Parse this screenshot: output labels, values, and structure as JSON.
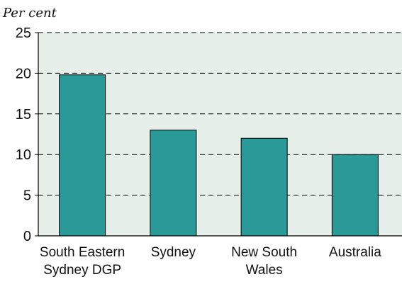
{
  "chart_data": {
    "type": "bar",
    "ylabel": "Per cent",
    "xlabel": "",
    "categories": [
      [
        "South Eastern",
        "Sydney DGP"
      ],
      [
        "Sydney"
      ],
      [
        "New South",
        "Wales"
      ],
      [
        "Australia"
      ]
    ],
    "values": [
      19.8,
      13.0,
      12.0,
      10.0
    ],
    "ylim": [
      0,
      25
    ],
    "yticks": [
      "0",
      "5",
      "10",
      "15",
      "20",
      "25"
    ],
    "grid": true,
    "colors": {
      "bar": "#2a9a98",
      "plot_background": "#e6efe9",
      "gridline": "#000000"
    }
  }
}
